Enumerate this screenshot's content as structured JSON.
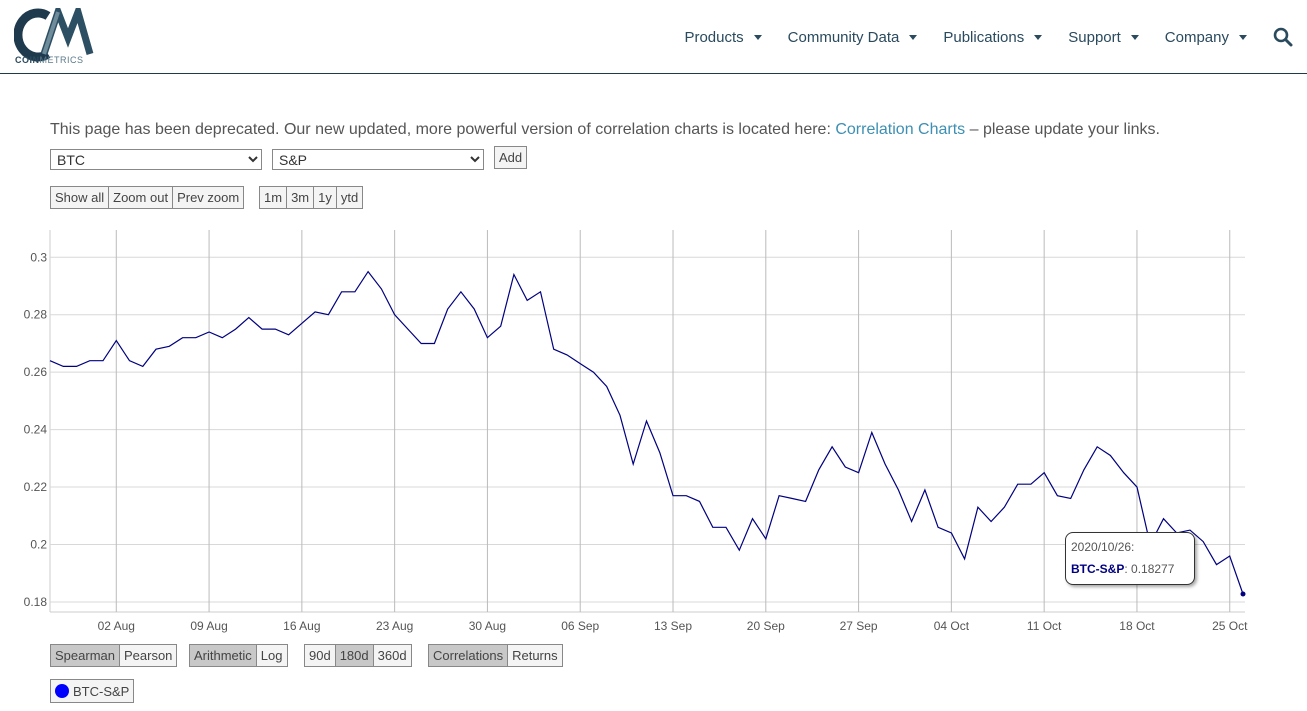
{
  "brand": {
    "logo_text": "CM",
    "wordmark_bold": "COIN",
    "wordmark_light": "METRICS"
  },
  "nav": {
    "items": [
      "Products",
      "Community Data",
      "Publications",
      "Support",
      "Company"
    ],
    "search_icon": "search-icon"
  },
  "notice": {
    "text_before": "This page has been deprecated. Our new updated, more powerful version of correlation charts is located here: ",
    "link_text": "Correlation Charts",
    "text_after": " – please update your links."
  },
  "selectors": {
    "asset1": "BTC",
    "asset2": "S&P",
    "add_label": "Add"
  },
  "zoom_buttons": [
    "Show all",
    "Zoom out",
    "Prev zoom"
  ],
  "range_buttons": [
    "1m",
    "3m",
    "1y",
    "ytd"
  ],
  "method_buttons": [
    "Spearman",
    "Pearson"
  ],
  "scale_buttons": [
    "Arithmetic",
    "Log"
  ],
  "window_buttons": [
    "90d",
    "180d",
    "360d"
  ],
  "mode_buttons": [
    "Correlations",
    "Returns"
  ],
  "colors": {
    "series": "#000080",
    "legend_dot": "#0000ff",
    "link": "#3d8fb3",
    "nav": "#2a4a5e"
  },
  "tooltip": {
    "date": "2020/10/26:",
    "series": "BTC-S&P",
    "value": "0.18277"
  },
  "legend": {
    "label": "BTC-S&P"
  },
  "chart_data": {
    "type": "line",
    "title": "",
    "xlabel": "",
    "ylabel": "",
    "x_start": "2020-07-28",
    "x_end": "2020-10-26",
    "x_ticks": [
      "02 Aug",
      "09 Aug",
      "16 Aug",
      "23 Aug",
      "30 Aug",
      "06 Sep",
      "13 Sep",
      "20 Sep",
      "27 Sep",
      "04 Oct",
      "11 Oct",
      "18 Oct",
      "25 Oct"
    ],
    "y_ticks": [
      "0.3",
      "0.28",
      "0.26",
      "0.24",
      "0.22",
      "0.2",
      "0.18"
    ],
    "ylim": [
      0.1765,
      0.3095
    ],
    "grid": true,
    "series": [
      {
        "name": "BTC-S&P",
        "values": [
          0.264,
          0.262,
          0.262,
          0.264,
          0.264,
          0.271,
          0.264,
          0.262,
          0.268,
          0.269,
          0.272,
          0.272,
          0.274,
          0.272,
          0.275,
          0.279,
          0.275,
          0.275,
          0.273,
          0.277,
          0.281,
          0.28,
          0.288,
          0.288,
          0.295,
          0.289,
          0.28,
          0.275,
          0.27,
          0.27,
          0.282,
          0.288,
          0.282,
          0.272,
          0.276,
          0.294,
          0.285,
          0.288,
          0.268,
          0.266,
          0.263,
          0.26,
          0.255,
          0.245,
          0.228,
          0.243,
          0.232,
          0.217,
          0.217,
          0.215,
          0.206,
          0.206,
          0.198,
          0.209,
          0.202,
          0.217,
          0.216,
          0.215,
          0.226,
          0.234,
          0.227,
          0.225,
          0.239,
          0.228,
          0.219,
          0.208,
          0.219,
          0.206,
          0.204,
          0.195,
          0.213,
          0.208,
          0.213,
          0.221,
          0.221,
          0.225,
          0.217,
          0.216,
          0.226,
          0.234,
          0.231,
          0.225,
          0.22,
          0.2,
          0.209,
          0.204,
          0.205,
          0.201,
          0.193,
          0.196,
          0.18277
        ]
      }
    ]
  }
}
